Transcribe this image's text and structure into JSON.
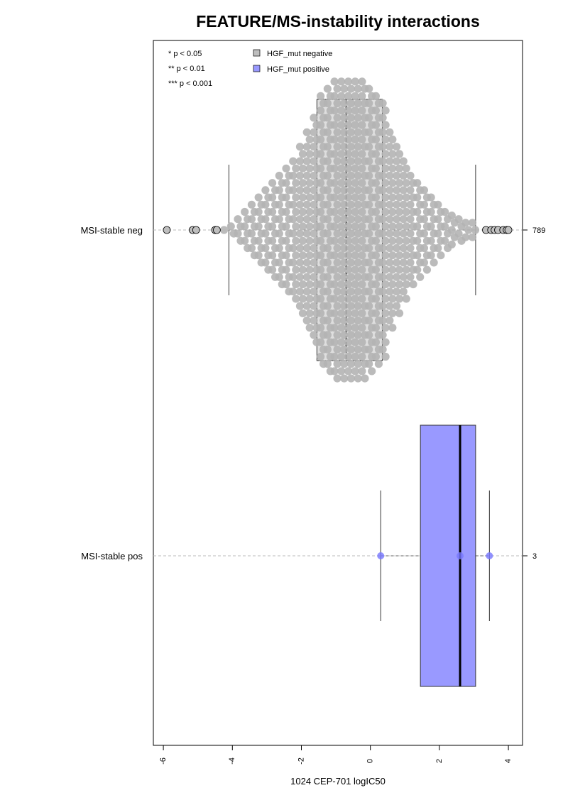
{
  "chart_data": {
    "type": "box",
    "title": "FEATURE/MS-instability interactions",
    "xlabel": "1024 CEP-701 logIC50",
    "xlim": [
      -6.29,
      4.41
    ],
    "xticks": [
      -6,
      -4,
      -2,
      0,
      2,
      4
    ],
    "categories": [
      "MSI-stable neg",
      "MSI-stable pos"
    ],
    "significance": [
      "* p < 0.05",
      "** p < 0.01",
      "*** p < 0.001"
    ],
    "series": [
      {
        "name": "HGF_mut negative",
        "color": "#bebebe",
        "n": 789,
        "whisker_low": -4.1,
        "q1": -1.55,
        "median": -0.7,
        "q3": 0.35,
        "whisker_high": 3.05,
        "outliers": [
          -5.9,
          -5.15,
          -5.05,
          -4.5,
          -4.45,
          3.35,
          3.5,
          3.6,
          3.7,
          3.85,
          3.95,
          4.0
        ],
        "swarm": {
          "bins": [
            -4.3,
            -4.1,
            -3.9,
            -3.7,
            -3.5,
            -3.3,
            -3.1,
            -2.9,
            -2.7,
            -2.5,
            -2.3,
            -2.1,
            -1.9,
            -1.7,
            -1.5,
            -1.3,
            -1.1,
            -0.9,
            -0.7,
            -0.5,
            -0.3,
            -0.1,
            0.1,
            0.3,
            0.5,
            0.7,
            0.9,
            1.1,
            1.3,
            1.5,
            1.7,
            1.9,
            2.1,
            2.3,
            2.5,
            2.7,
            2.9,
            3.1
          ],
          "counts": [
            1,
            2,
            4,
            6,
            8,
            10,
            12,
            14,
            16,
            18,
            20,
            24,
            28,
            32,
            38,
            40,
            42,
            42,
            42,
            42,
            42,
            40,
            38,
            36,
            28,
            24,
            20,
            16,
            14,
            12,
            10,
            8,
            6,
            5,
            4,
            3,
            3
          ]
        }
      },
      {
        "name": "HGF_mut positive",
        "color": "#9999ff",
        "n": 3,
        "whisker_low": 0.3,
        "q1": 1.45,
        "median": 2.6,
        "q3": 3.05,
        "whisker_high": 3.45,
        "points": [
          0.3,
          2.6,
          3.45
        ]
      }
    ]
  }
}
